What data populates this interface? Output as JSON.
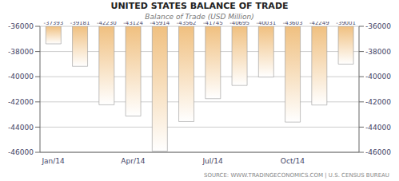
{
  "chart_data": {
    "type": "bar",
    "title": "UNITED STATES BALANCE OF TRADE",
    "subtitle": "Balance of Trade (USD Million)",
    "annotations": [
      "SOURCE: WWW.TRADINGECONOMICS.COM | U.S. CENSUS BUREAU"
    ],
    "categories": [
      "Jan/14",
      null,
      null,
      "Apr/14",
      null,
      null,
      "Jul/14",
      null,
      null,
      "Oct/14",
      null,
      null
    ],
    "values": [
      -37393,
      -39181,
      -42230,
      -43124,
      -45914,
      -43562,
      -41745,
      -40695,
      -40031,
      -43603,
      -42249,
      -39001
    ],
    "color": "#f0c080",
    "ylim": [
      -46000,
      -36000
    ],
    "yticks": [
      -36000,
      -38000,
      -40000,
      -42000,
      -44000,
      -46000
    ],
    "y2lim": [
      -46000,
      -36000
    ],
    "y2ticks": [
      -36000,
      -38000,
      -40000,
      -42000,
      -44000,
      -46000
    ],
    "grid": true,
    "data_labels": true
  }
}
